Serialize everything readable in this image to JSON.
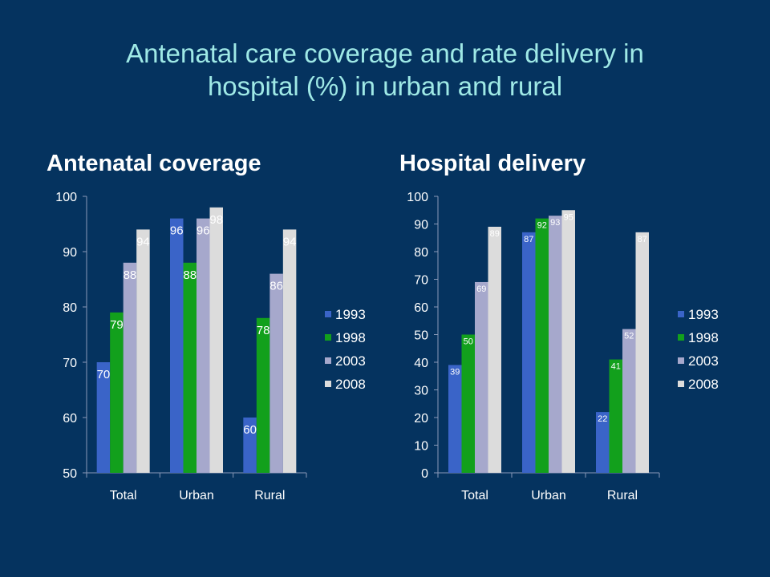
{
  "slide": {
    "title_line1": "Antenatal care coverage and rate delivery in",
    "title_line2": "hospital (%) in urban and rural"
  },
  "colors": {
    "background": "#05335f",
    "title": "#9fe9e6",
    "series": [
      "#3a64c8",
      "#12a01c",
      "#a6a8cc",
      "#dcdcdc"
    ]
  },
  "chart_data": [
    {
      "type": "bar",
      "title": "Antenatal coverage",
      "categories": [
        "Total",
        "Urban",
        "Rural"
      ],
      "series": [
        {
          "name": "1993",
          "values": [
            70,
            96,
            60
          ]
        },
        {
          "name": "1998",
          "values": [
            79,
            88,
            78
          ]
        },
        {
          "name": "2003",
          "values": [
            88,
            96,
            86
          ]
        },
        {
          "name": "2008",
          "values": [
            94,
            98,
            94
          ]
        }
      ],
      "ylim": [
        50,
        100
      ],
      "yticks": [
        50,
        60,
        70,
        80,
        90,
        100
      ],
      "legend": "right",
      "grid": false
    },
    {
      "type": "bar",
      "title": "Hospital delivery",
      "categories": [
        "Total",
        "Urban",
        "Rural"
      ],
      "series": [
        {
          "name": "1993",
          "values": [
            39,
            87,
            22
          ]
        },
        {
          "name": "1998",
          "values": [
            50,
            92,
            41
          ]
        },
        {
          "name": "2003",
          "values": [
            69,
            93,
            52
          ]
        },
        {
          "name": "2008",
          "values": [
            89,
            95,
            87
          ]
        }
      ],
      "ylim": [
        0,
        100
      ],
      "yticks": [
        0,
        10,
        20,
        30,
        40,
        50,
        60,
        70,
        80,
        90,
        100
      ],
      "legend": "right",
      "grid": false
    }
  ]
}
